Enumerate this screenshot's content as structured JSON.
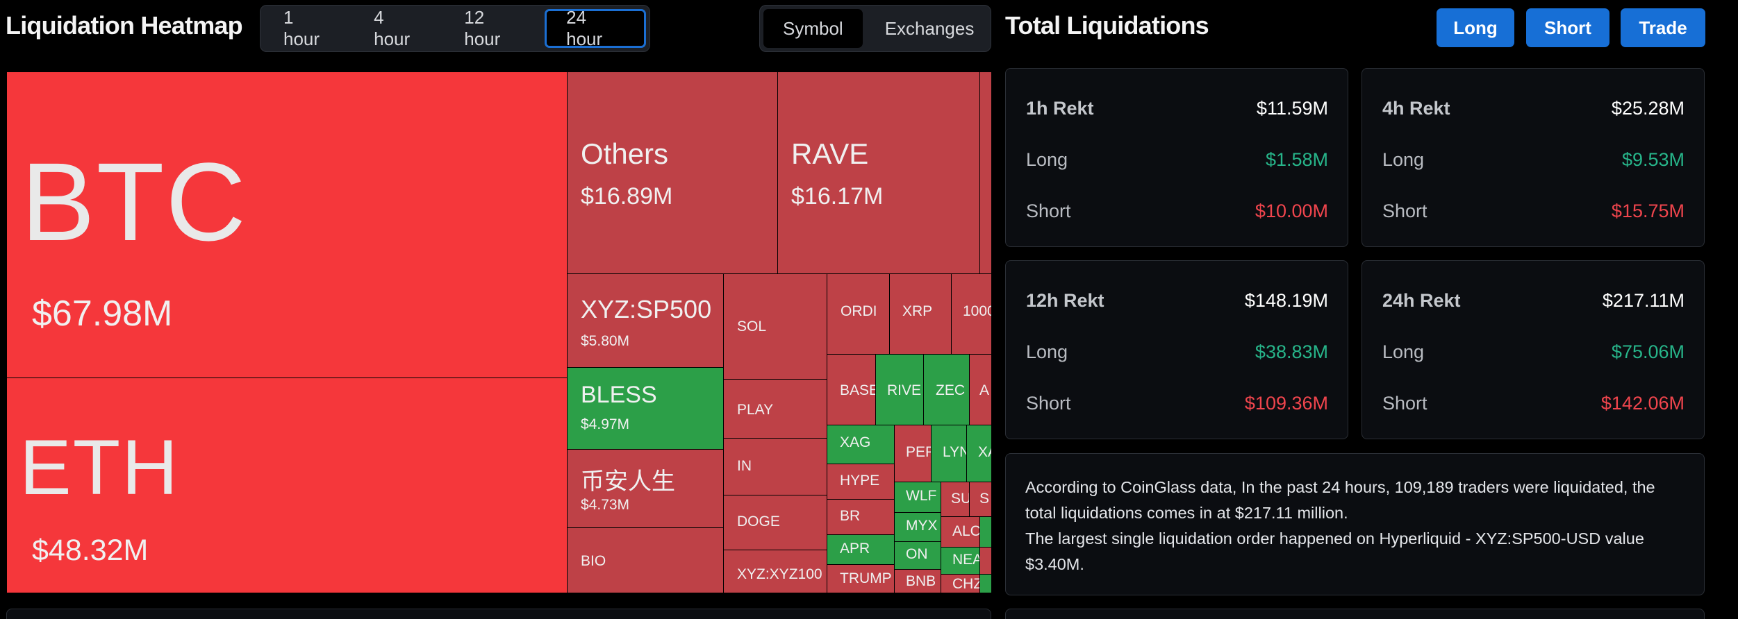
{
  "header": {
    "title": "Liquidation Heatmap",
    "timeframes": [
      "1 hour",
      "4 hour",
      "12 hour",
      "24 hour"
    ],
    "active_timeframe": "24 hour",
    "view_modes": [
      "Symbol",
      "Exchanges"
    ],
    "active_view": "Symbol"
  },
  "right_header": {
    "title": "Total Liquidations",
    "buttons": [
      "Long",
      "Short",
      "Trade"
    ]
  },
  "heatmap": {
    "tiles": [
      {
        "name": "BTC",
        "value": "$67.98M",
        "color": "#f5373b"
      },
      {
        "name": "ETH",
        "value": "$48.32M",
        "color": "#f5373b"
      },
      {
        "name": "Others",
        "value": "$16.89M",
        "color": "#be4147"
      },
      {
        "name": "RAVE",
        "value": "$16.17M",
        "color": "#be4147"
      },
      {
        "name": "XYZ:SP500",
        "value": "$5.80M",
        "color": "#be4147"
      },
      {
        "name": "BLESS",
        "value": "$4.97M",
        "color": "#2c9f48"
      },
      {
        "name": "币安人生",
        "value": "$4.73M",
        "color": "#be4147"
      },
      {
        "name": "BIO",
        "value": "",
        "color": "#be4147"
      },
      {
        "name": "SOL",
        "value": "",
        "color": "#be4147"
      },
      {
        "name": "PLAY",
        "value": "",
        "color": "#be4147"
      },
      {
        "name": "IN",
        "value": "",
        "color": "#be4147"
      },
      {
        "name": "DOGE",
        "value": "",
        "color": "#be4147"
      },
      {
        "name": "XYZ:XYZ100",
        "value": "",
        "color": "#be4147"
      },
      {
        "name": "ORDI",
        "value": "",
        "color": "#be4147"
      },
      {
        "name": "XRP",
        "value": "",
        "color": "#be4147"
      },
      {
        "name": "1000",
        "value": "",
        "color": "#be4147"
      },
      {
        "name": "BASE",
        "value": "",
        "color": "#be4147"
      },
      {
        "name": "RIVE",
        "value": "",
        "color": "#2c9f48"
      },
      {
        "name": "ZEC",
        "value": "",
        "color": "#2c9f48"
      },
      {
        "name": "A",
        "value": "",
        "color": "#be4147"
      },
      {
        "name": "XAG",
        "value": "",
        "color": "#2c9f48"
      },
      {
        "name": "PEP",
        "value": "",
        "color": "#be4147"
      },
      {
        "name": "LYN",
        "value": "",
        "color": "#2c9f48"
      },
      {
        "name": "XA",
        "value": "",
        "color": "#2c9f48"
      },
      {
        "name": "HYPE",
        "value": "",
        "color": "#be4147"
      },
      {
        "name": "WLF",
        "value": "",
        "color": "#2c9f48"
      },
      {
        "name": "SU",
        "value": "",
        "color": "#be4147"
      },
      {
        "name": "S",
        "value": "",
        "color": "#be4147"
      },
      {
        "name": "BR",
        "value": "",
        "color": "#be4147"
      },
      {
        "name": "MYX",
        "value": "",
        "color": "#2c9f48"
      },
      {
        "name": "ALC",
        "value": "",
        "color": "#be4147"
      },
      {
        "name": "APR",
        "value": "",
        "color": "#2c9f48"
      },
      {
        "name": "ON",
        "value": "",
        "color": "#2c9f48"
      },
      {
        "name": "NEA",
        "value": "",
        "color": "#2c9f48"
      },
      {
        "name": "TRUMP",
        "value": "",
        "color": "#be4147"
      },
      {
        "name": "BNB",
        "value": "",
        "color": "#be4147"
      },
      {
        "name": "CHZ",
        "value": "",
        "color": "#be4147"
      }
    ]
  },
  "cards": [
    {
      "title": "1h Rekt",
      "total": "$11.59M",
      "long_label": "Long",
      "long": "$1.58M",
      "short_label": "Short",
      "short": "$10.00M"
    },
    {
      "title": "4h Rekt",
      "total": "$25.28M",
      "long_label": "Long",
      "long": "$9.53M",
      "short_label": "Short",
      "short": "$15.75M"
    },
    {
      "title": "12h Rekt",
      "total": "$148.19M",
      "long_label": "Long",
      "long": "$38.83M",
      "short_label": "Short",
      "short": "$109.36M"
    },
    {
      "title": "24h Rekt",
      "total": "$217.11M",
      "long_label": "Long",
      "long": "$75.06M",
      "short_label": "Short",
      "short": "$142.06M"
    }
  ],
  "summary": {
    "line1": "According to CoinGlass data, In the past 24 hours, 109,189 traders were liquidated, the total liquidations comes in at $217.11 million.",
    "line2": "The largest single liquidation order happened on Hyperliquid - XYZ:SP500-USD value $3.40M."
  },
  "colors": {
    "accent_blue": "#176fd6",
    "long_green": "#27b58a",
    "short_red": "#f0454d",
    "tile_bright_red": "#f5373b",
    "tile_red": "#be4147",
    "tile_green": "#2c9f48"
  }
}
